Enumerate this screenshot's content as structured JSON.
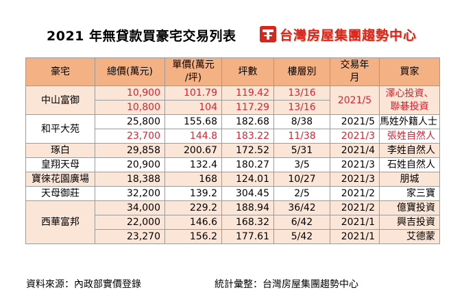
{
  "title": "2021 年無貸款買豪宅交易列表",
  "logo": {
    "text": "台灣房屋集團趨勢中心",
    "icon": "taiwan-realty-logo-icon",
    "color": "#d9261c"
  },
  "headers": {
    "name": "豪宅",
    "total": "總價(萬元)",
    "unit_line1": "單價(萬元",
    "unit_line2": "/坪)",
    "area": "坪數",
    "floor": "樓層別",
    "date_line1": "交易年",
    "date_line2": "月",
    "buyer": "買家"
  },
  "rows": [
    {
      "name": "中山富御",
      "total": "10,900",
      "unit": "101.79",
      "area": "119.42",
      "floor": "13/16",
      "date": "2021/5",
      "buyer_line1": "澤心投資、",
      "buyer_line2": "聯碁投資"
    },
    {
      "total": "10,800",
      "unit": "104",
      "area": "117.29",
      "floor": "13/16"
    },
    {
      "name": "和平大苑",
      "total": "25,800",
      "unit": "155.68",
      "area": "182.68",
      "floor": "8/38",
      "date": "2021/5",
      "buyer": "馬姓外籍人士"
    },
    {
      "total": "23,700",
      "unit": "144.8",
      "area": "183.22",
      "floor": "11/38",
      "date": "2021/3",
      "buyer": "張姓自然人"
    },
    {
      "name": "琢白",
      "total": "29,858",
      "unit": "200.67",
      "area": "172.52",
      "floor": "5/31",
      "date": "2021/4",
      "buyer": "李姓自然人"
    },
    {
      "name": "皇翔天母",
      "total": "20,900",
      "unit": "132.4",
      "area": "180.27",
      "floor": "3/5",
      "date": "2021/3",
      "buyer": "石姓自然人"
    },
    {
      "name": "寶徠花園廣場",
      "total": "18,388",
      "unit": "168",
      "area": "124.01",
      "floor": "10/27",
      "date": "2021/3",
      "buyer": "朋城"
    },
    {
      "name": "天母御莊",
      "total": "32,200",
      "unit": "139.2",
      "area": "304.45",
      "floor": "2/5",
      "date": "2021/2",
      "buyer": "家三寶"
    },
    {
      "name": "西華富邦",
      "total": "34,000",
      "unit": "229.2",
      "area": "188.94",
      "floor": "36/42",
      "date": "2021/2",
      "buyer": "億寶投資"
    },
    {
      "total": "22,000",
      "unit": "146.6",
      "area": "168.32",
      "floor": "6/42",
      "date": "2021/1",
      "buyer": "興吉投資"
    },
    {
      "total": "23,270",
      "unit": "156.2",
      "area": "177.61",
      "floor": "5/42",
      "date": "2021/1",
      "buyer": "艾德蒙"
    }
  ],
  "footer": {
    "source": "資料來源：內政部實價登錄",
    "compiler": "統計彙整：台灣房屋集團趨勢中心"
  },
  "colors": {
    "header_bg": "#f4b183",
    "alt_row_bg": "#fbe5d6",
    "highlight_text": "#e0212e"
  }
}
